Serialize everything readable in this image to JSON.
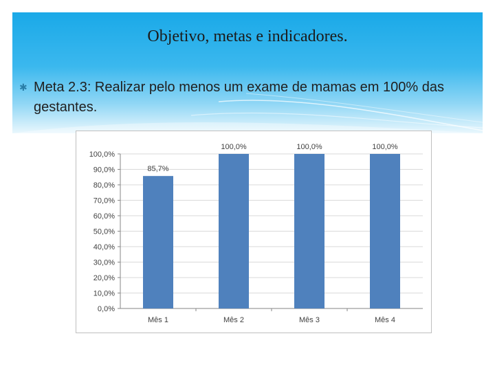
{
  "slide": {
    "title": "Objetivo, metas e indicadores.",
    "bullet_icon": "asterisk-bullet-icon",
    "bullet_text": "Meta 2.3: Realizar pelo menos um exame de mamas em 100% das gestantes."
  },
  "colors": {
    "banner_top": "#1aa9e8",
    "bar": "#4f81bd",
    "axis": "#868686",
    "grid": "#d9d9d9"
  },
  "chart_data": {
    "type": "bar",
    "categories": [
      "Mês 1",
      "Mês 2",
      "Mês 3",
      "Mês 4"
    ],
    "values": [
      85.7,
      100.0,
      100.0,
      100.0
    ],
    "data_labels": [
      "85,7%",
      "100,0%",
      "100,0%",
      "100,0%"
    ],
    "ylim": [
      0,
      100
    ],
    "y_ticks": [
      "0,0%",
      "10,0%",
      "20,0%",
      "30,0%",
      "40,0%",
      "50,0%",
      "60,0%",
      "70,0%",
      "80,0%",
      "90,0%",
      "100,0%"
    ],
    "grid": true,
    "legend": "none",
    "title": "",
    "xlabel": "",
    "ylabel": ""
  }
}
